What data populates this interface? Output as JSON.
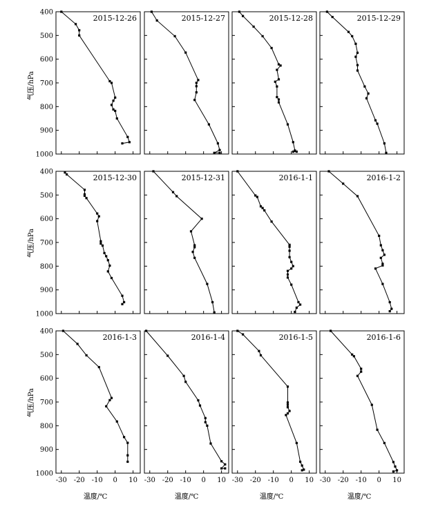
{
  "figure": {
    "ylabel": "气压/hPa",
    "xlabel": "温度/℃",
    "x_ticks": [
      "-30",
      "-20",
      "-10",
      "0",
      "10"
    ],
    "y_ticks": [
      "400",
      "500",
      "600",
      "700",
      "800",
      "900",
      "1000"
    ]
  },
  "chart_data": [
    {
      "type": "line",
      "title": "2015-12-26",
      "xlabel": "温度/℃",
      "ylabel": "气压/hPa",
      "xlim": [
        -33,
        14
      ],
      "ylim": [
        1000,
        400
      ],
      "points": [
        [
          -30,
          400
        ],
        [
          -22,
          452
        ],
        [
          -20,
          478
        ],
        [
          -20,
          500
        ],
        [
          -3,
          693
        ],
        [
          -2,
          700
        ],
        [
          0,
          762
        ],
        [
          -1,
          775
        ],
        [
          -2,
          793
        ],
        [
          -1,
          812
        ],
        [
          0,
          818
        ],
        [
          1,
          850
        ],
        [
          7,
          928
        ],
        [
          8,
          950
        ],
        [
          4,
          955
        ]
      ]
    },
    {
      "type": "line",
      "title": "2015-12-27",
      "xlabel": "温度/℃",
      "ylabel": "气压/hPa",
      "xlim": [
        -33,
        14
      ],
      "ylim": [
        1000,
        400
      ],
      "points": [
        [
          -29,
          400
        ],
        [
          -26,
          437
        ],
        [
          -16,
          503
        ],
        [
          -10,
          572
        ],
        [
          -3,
          688
        ],
        [
          -4,
          700
        ],
        [
          -4,
          714
        ],
        [
          -4,
          740
        ],
        [
          -5,
          772
        ],
        [
          3,
          875
        ],
        [
          8,
          955
        ],
        [
          9,
          983
        ],
        [
          6,
          995
        ],
        [
          9,
          995
        ]
      ]
    },
    {
      "type": "line",
      "title": "2015-12-28",
      "xlabel": "温度/℃",
      "ylabel": "气压/hPa",
      "xlim": [
        -33,
        14
      ],
      "ylim": [
        1000,
        400
      ],
      "points": [
        [
          -29,
          400
        ],
        [
          -27,
          418
        ],
        [
          -21,
          463
        ],
        [
          -16,
          503
        ],
        [
          -11,
          553
        ],
        [
          -7,
          622
        ],
        [
          -6,
          627
        ],
        [
          -8,
          645
        ],
        [
          -7,
          685
        ],
        [
          -9,
          695
        ],
        [
          -8,
          715
        ],
        [
          -8,
          760
        ],
        [
          -7,
          770
        ],
        [
          -7,
          782
        ],
        [
          -2,
          875
        ],
        [
          1,
          950
        ],
        [
          2,
          985
        ],
        [
          3,
          990
        ],
        [
          1,
          990
        ]
      ]
    },
    {
      "type": "line",
      "title": "2015-12-29",
      "xlabel": "温度/℃",
      "ylabel": "气压/hPa",
      "xlim": [
        -33,
        14
      ],
      "ylim": [
        1000,
        400
      ],
      "points": [
        [
          -29,
          400
        ],
        [
          -26,
          422
        ],
        [
          -17,
          485
        ],
        [
          -15,
          503
        ],
        [
          -13,
          535
        ],
        [
          -12,
          573
        ],
        [
          -13,
          590
        ],
        [
          -12,
          625
        ],
        [
          -12,
          648
        ],
        [
          -8,
          715
        ],
        [
          -6,
          745
        ],
        [
          -7,
          765
        ],
        [
          -2,
          858
        ],
        [
          -1,
          872
        ],
        [
          3,
          955
        ],
        [
          4,
          995
        ]
      ]
    },
    {
      "type": "line",
      "title": "2015-12-30",
      "xlabel": "温度/℃",
      "ylabel": "气压/hPa",
      "xlim": [
        -33,
        14
      ],
      "ylim": [
        1000,
        400
      ],
      "points": [
        [
          -28,
          405
        ],
        [
          -27,
          413
        ],
        [
          -17,
          478
        ],
        [
          -17,
          497
        ],
        [
          -17,
          503
        ],
        [
          -16,
          513
        ],
        [
          -10,
          578
        ],
        [
          -9,
          590
        ],
        [
          -10,
          610
        ],
        [
          -8,
          695
        ],
        [
          -8,
          705
        ],
        [
          -7,
          713
        ],
        [
          -6,
          745
        ],
        [
          -5,
          758
        ],
        [
          -4,
          775
        ],
        [
          -3,
          798
        ],
        [
          -4,
          822
        ],
        [
          -2,
          850
        ],
        [
          4,
          925
        ],
        [
          5,
          952
        ],
        [
          4,
          960
        ]
      ]
    },
    {
      "type": "line",
      "title": "2015-12-31",
      "xlabel": "温度/℃",
      "ylabel": "气压/hPa",
      "xlim": [
        -33,
        14
      ],
      "ylim": [
        1000,
        400
      ],
      "points": [
        [
          -28,
          400
        ],
        [
          -17,
          488
        ],
        [
          -15,
          505
        ],
        [
          -1,
          600
        ],
        [
          -7,
          653
        ],
        [
          -5,
          712
        ],
        [
          -5,
          720
        ],
        [
          -6,
          740
        ],
        [
          -5,
          765
        ],
        [
          2,
          875
        ],
        [
          5,
          952
        ],
        [
          6,
          995
        ]
      ]
    },
    {
      "type": "line",
      "title": "2016-1-1",
      "xlabel": "温度/℃",
      "ylabel": "气压/hPa",
      "xlim": [
        -33,
        14
      ],
      "ylim": [
        1000,
        400
      ],
      "points": [
        [
          -30,
          400
        ],
        [
          -20,
          502
        ],
        [
          -19,
          508
        ],
        [
          -17,
          548
        ],
        [
          -16,
          555
        ],
        [
          -15,
          565
        ],
        [
          -11,
          612
        ],
        [
          -1,
          710
        ],
        [
          -1,
          718
        ],
        [
          -1,
          735
        ],
        [
          -1,
          762
        ],
        [
          0,
          782
        ],
        [
          1,
          800
        ],
        [
          0,
          810
        ],
        [
          -2,
          820
        ],
        [
          -2,
          835
        ],
        [
          -2,
          848
        ],
        [
          0,
          878
        ],
        [
          4,
          952
        ],
        [
          5,
          962
        ],
        [
          3,
          975
        ],
        [
          2,
          993
        ]
      ]
    },
    {
      "type": "line",
      "title": "2016-1-2",
      "xlabel": "温度/℃",
      "ylabel": "气压/hPa",
      "xlim": [
        -33,
        14
      ],
      "ylim": [
        1000,
        400
      ],
      "points": [
        [
          -28,
          400
        ],
        [
          -20,
          452
        ],
        [
          -12,
          505
        ],
        [
          0,
          672
        ],
        [
          1,
          712
        ],
        [
          2,
          733
        ],
        [
          3,
          752
        ],
        [
          1,
          765
        ],
        [
          2,
          790
        ],
        [
          2,
          797
        ],
        [
          -2,
          810
        ],
        [
          2,
          875
        ],
        [
          6,
          952
        ],
        [
          7,
          980
        ],
        [
          6,
          990
        ]
      ]
    },
    {
      "type": "line",
      "title": "2016-1-3",
      "xlabel": "温度/℃",
      "ylabel": "气压/hPa",
      "xlim": [
        -33,
        14
      ],
      "ylim": [
        1000,
        400
      ],
      "points": [
        [
          -29,
          400
        ],
        [
          -21,
          455
        ],
        [
          -16,
          503
        ],
        [
          -9,
          553
        ],
        [
          -2,
          683
        ],
        [
          -3,
          692
        ],
        [
          -5,
          718
        ],
        [
          1,
          782
        ],
        [
          5,
          848
        ],
        [
          7,
          872
        ],
        [
          7,
          925
        ],
        [
          7,
          952
        ]
      ]
    },
    {
      "type": "line",
      "title": "2016-1-4",
      "xlabel": "温度/℃",
      "ylabel": "气压/hPa",
      "xlim": [
        -33,
        14
      ],
      "ylim": [
        1000,
        400
      ],
      "points": [
        [
          -32,
          400
        ],
        [
          -20,
          505
        ],
        [
          -11,
          590
        ],
        [
          -10,
          615
        ],
        [
          -3,
          693
        ],
        [
          -2,
          715
        ],
        [
          1,
          768
        ],
        [
          1,
          785
        ],
        [
          2,
          800
        ],
        [
          4,
          875
        ],
        [
          10,
          950
        ],
        [
          12,
          963
        ],
        [
          10,
          980
        ],
        [
          12,
          980
        ]
      ]
    },
    {
      "type": "line",
      "title": "2016-1-5",
      "xlabel": "温度/℃",
      "ylabel": "气压/hPa",
      "xlim": [
        -33,
        14
      ],
      "ylim": [
        1000,
        400
      ],
      "points": [
        [
          -30,
          400
        ],
        [
          -27,
          415
        ],
        [
          -18,
          485
        ],
        [
          -17,
          503
        ],
        [
          -2,
          635
        ],
        [
          -2,
          702
        ],
        [
          -2,
          712
        ],
        [
          -2,
          722
        ],
        [
          -1,
          738
        ],
        [
          -2,
          748
        ],
        [
          -3,
          755
        ],
        [
          3,
          873
        ],
        [
          5,
          952
        ],
        [
          6,
          968
        ],
        [
          7,
          985
        ],
        [
          6,
          988
        ]
      ]
    },
    {
      "type": "line",
      "title": "2016-1-6",
      "xlabel": "温度/℃",
      "ylabel": "气压/hPa",
      "xlim": [
        -33,
        14
      ],
      "ylim": [
        1000,
        400
      ],
      "points": [
        [
          -27,
          400
        ],
        [
          -15,
          500
        ],
        [
          -14,
          507
        ],
        [
          -10,
          560
        ],
        [
          -10,
          572
        ],
        [
          -12,
          590
        ],
        [
          -4,
          712
        ],
        [
          -1,
          817
        ],
        [
          3,
          873
        ],
        [
          8,
          953
        ],
        [
          9,
          972
        ],
        [
          10,
          988
        ],
        [
          8,
          993
        ]
      ]
    }
  ]
}
